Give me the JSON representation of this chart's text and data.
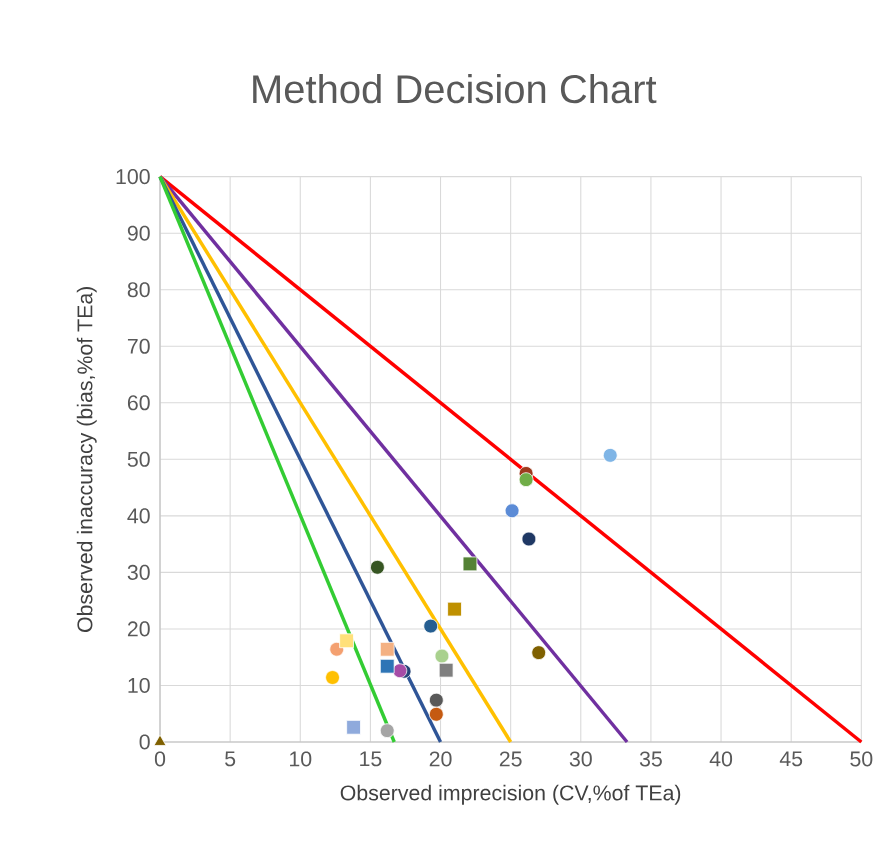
{
  "chart_data": {
    "type": "scatter",
    "title": "Method Decision Chart",
    "xlabel": "Observed imprecision (CV,%of TEa)",
    "ylabel": "Observed inaccuracy (bias,%of TEa)",
    "xlim": [
      0,
      50
    ],
    "ylim": [
      0,
      100
    ],
    "xticks": [
      0,
      5,
      10,
      15,
      20,
      25,
      30,
      35,
      40,
      45,
      50
    ],
    "yticks": [
      0,
      10,
      20,
      30,
      40,
      50,
      60,
      70,
      80,
      90,
      100
    ],
    "grid": true,
    "series": [
      {
        "type": "line",
        "color": "#ff0000",
        "x": [
          0,
          50
        ],
        "values": [
          100,
          0
        ],
        "marker": "none",
        "line_style": "solid"
      },
      {
        "type": "line",
        "color": "#7030a0",
        "x": [
          0,
          33.3
        ],
        "values": [
          100,
          0
        ],
        "marker": "none",
        "line_style": "solid"
      },
      {
        "type": "line",
        "color": "#ffc000",
        "x": [
          0,
          25
        ],
        "values": [
          100,
          0
        ],
        "marker": "none",
        "line_style": "solid"
      },
      {
        "type": "line",
        "color": "#2f5597",
        "x": [
          0,
          20
        ],
        "values": [
          100,
          0
        ],
        "marker": "none",
        "line_style": "solid"
      },
      {
        "type": "line",
        "color": "#33cc33",
        "x": [
          0,
          16.7
        ],
        "values": [
          100,
          0
        ],
        "marker": "none",
        "line_style": "solid"
      },
      {
        "marker": "circle",
        "x": [
          32.1,
          26.1,
          26.1,
          25.1,
          26.3,
          15.5,
          19.3,
          27.0,
          20.1,
          12.6,
          17.4,
          17.1,
          12.3,
          19.7,
          19.7,
          16.2
        ],
        "values": [
          50.7,
          47.5,
          46.4,
          40.9,
          35.9,
          30.9,
          20.5,
          15.8,
          15.2,
          16.4,
          12.5,
          12.6,
          11.4,
          7.4,
          4.9,
          2.0
        ],
        "colors": [
          "#7fb5e6",
          "#9e3a1e",
          "#70ad47",
          "#5b8bd6",
          "#1f3864",
          "#375623",
          "#255e91",
          "#7f6000",
          "#a9d18e",
          "#f4a070",
          "#264478",
          "#a64ca6",
          "#ffc000",
          "#595959",
          "#c55a11",
          "#a5a5a5"
        ]
      },
      {
        "marker": "square",
        "x": [
          22.1,
          21.0,
          20.4,
          13.3,
          16.2,
          16.2,
          13.8
        ],
        "values": [
          31.5,
          23.5,
          12.7,
          17.9,
          16.4,
          13.4,
          2.6
        ],
        "colors": [
          "#548235",
          "#bf9000",
          "#7f7f7f",
          "#ffe07a",
          "#f4b183",
          "#2e75b6",
          "#8faadc"
        ]
      },
      {
        "marker": "triangle",
        "x": [
          0
        ],
        "values": [
          0
        ],
        "colors": [
          "#7f6000"
        ]
      }
    ]
  }
}
